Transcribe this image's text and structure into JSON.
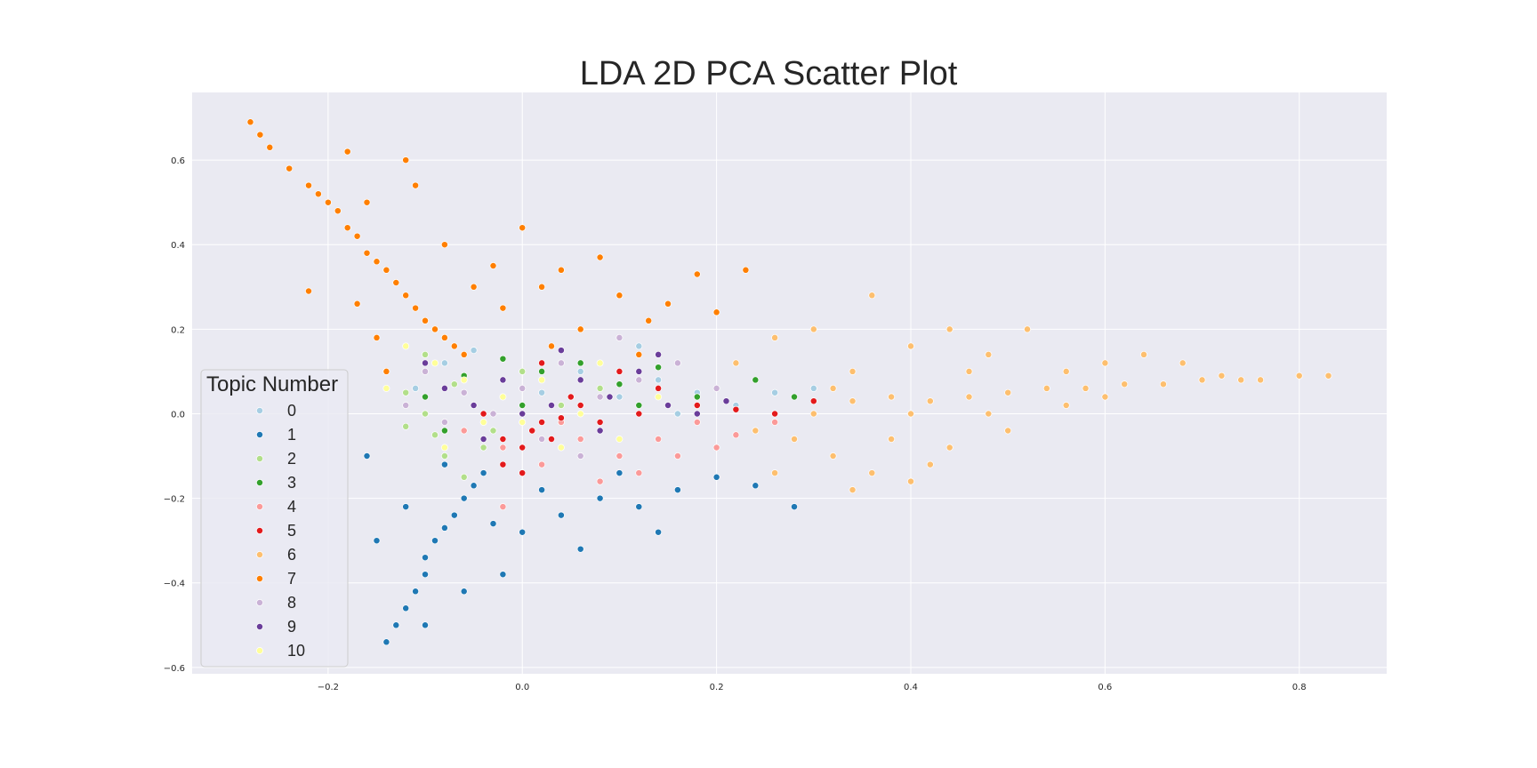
{
  "chart_data": {
    "type": "scatter",
    "title": "LDA 2D PCA Scatter Plot",
    "xlabel": "",
    "ylabel": "",
    "xlim": [
      -0.34,
      0.89
    ],
    "ylim": [
      -0.615,
      0.76
    ],
    "xticks": [
      -0.2,
      0.0,
      0.2,
      0.4,
      0.6,
      0.8
    ],
    "yticks": [
      -0.6,
      -0.4,
      -0.2,
      0.0,
      0.2,
      0.4,
      0.6
    ],
    "xtick_labels": [
      "−0.2",
      "0.0",
      "0.2",
      "0.4",
      "0.6",
      "0.8"
    ],
    "ytick_labels": [
      "−0.6",
      "−0.4",
      "−0.2",
      "0.0",
      "0.2",
      "0.4",
      "0.6"
    ],
    "grid": true,
    "legend": {
      "title": "Topic Number",
      "placement": "center-left"
    },
    "series": [
      {
        "name": "0",
        "color": "#a6cee3",
        "points": [
          [
            -0.08,
            0.12
          ],
          [
            -0.05,
            0.15
          ],
          [
            -0.02,
            0.08
          ],
          [
            0.02,
            0.05
          ],
          [
            0.06,
            0.1
          ],
          [
            0.1,
            0.04
          ],
          [
            0.14,
            0.08
          ],
          [
            0.18,
            0.05
          ],
          [
            0.22,
            0.02
          ],
          [
            0.26,
            0.05
          ],
          [
            0.3,
            0.06
          ],
          [
            0.12,
            0.16
          ],
          [
            -0.11,
            0.06
          ],
          [
            0.04,
            -0.02
          ],
          [
            0.16,
            0.0
          ]
        ]
      },
      {
        "name": "1",
        "color": "#1f78b4",
        "points": [
          [
            -0.14,
            -0.54
          ],
          [
            -0.13,
            -0.5
          ],
          [
            -0.12,
            -0.46
          ],
          [
            -0.11,
            -0.42
          ],
          [
            -0.1,
            -0.38
          ],
          [
            -0.1,
            -0.34
          ],
          [
            -0.09,
            -0.3
          ],
          [
            -0.08,
            -0.27
          ],
          [
            -0.07,
            -0.24
          ],
          [
            -0.06,
            -0.2
          ],
          [
            -0.05,
            -0.17
          ],
          [
            -0.04,
            -0.14
          ],
          [
            -0.16,
            -0.1
          ],
          [
            -0.12,
            -0.22
          ],
          [
            -0.15,
            -0.3
          ],
          [
            -0.03,
            -0.26
          ],
          [
            0.0,
            -0.28
          ],
          [
            0.04,
            -0.24
          ],
          [
            0.08,
            -0.2
          ],
          [
            0.12,
            -0.22
          ],
          [
            0.16,
            -0.18
          ],
          [
            0.2,
            -0.15
          ],
          [
            0.24,
            -0.17
          ],
          [
            0.28,
            -0.22
          ],
          [
            0.14,
            -0.28
          ],
          [
            0.06,
            -0.32
          ],
          [
            -0.02,
            -0.38
          ],
          [
            -0.06,
            -0.42
          ],
          [
            -0.1,
            -0.5
          ],
          [
            -0.08,
            -0.12
          ],
          [
            0.02,
            -0.18
          ],
          [
            0.1,
            -0.14
          ]
        ]
      },
      {
        "name": "2",
        "color": "#b2df8a",
        "points": [
          [
            -0.14,
            0.1
          ],
          [
            -0.12,
            0.05
          ],
          [
            -0.1,
            0.0
          ],
          [
            -0.09,
            -0.05
          ],
          [
            -0.08,
            -0.1
          ],
          [
            -0.07,
            0.07
          ],
          [
            -0.05,
            0.02
          ],
          [
            -0.03,
            -0.04
          ],
          [
            -0.12,
            -0.03
          ],
          [
            -0.06,
            -0.15
          ],
          [
            -0.1,
            0.14
          ],
          [
            0.0,
            0.1
          ],
          [
            0.04,
            0.02
          ],
          [
            0.08,
            0.06
          ],
          [
            -0.04,
            -0.08
          ]
        ]
      },
      {
        "name": "3",
        "color": "#33a02c",
        "points": [
          [
            -0.1,
            0.04
          ],
          [
            -0.06,
            0.09
          ],
          [
            -0.02,
            0.13
          ],
          [
            0.02,
            0.1
          ],
          [
            0.06,
            0.12
          ],
          [
            0.1,
            0.07
          ],
          [
            0.14,
            0.11
          ],
          [
            0.18,
            0.04
          ],
          [
            0.24,
            0.08
          ],
          [
            0.28,
            0.04
          ],
          [
            -0.08,
            -0.04
          ],
          [
            0.0,
            0.02
          ],
          [
            0.12,
            0.02
          ]
        ]
      },
      {
        "name": "4",
        "color": "#fb9a99",
        "points": [
          [
            -0.06,
            -0.04
          ],
          [
            -0.02,
            -0.08
          ],
          [
            0.02,
            -0.12
          ],
          [
            0.06,
            -0.06
          ],
          [
            0.1,
            -0.1
          ],
          [
            0.14,
            -0.06
          ],
          [
            0.18,
            -0.02
          ],
          [
            0.22,
            -0.05
          ],
          [
            0.26,
            -0.02
          ],
          [
            0.08,
            -0.16
          ],
          [
            0.12,
            -0.14
          ],
          [
            -0.02,
            -0.22
          ],
          [
            0.04,
            -0.02
          ],
          [
            0.16,
            -0.1
          ],
          [
            0.2,
            -0.08
          ]
        ]
      },
      {
        "name": "5",
        "color": "#e31a1c",
        "points": [
          [
            -0.02,
            -0.12
          ],
          [
            0.0,
            -0.08
          ],
          [
            0.01,
            -0.04
          ],
          [
            0.02,
            -0.02
          ],
          [
            0.03,
            -0.06
          ],
          [
            0.04,
            -0.01
          ],
          [
            0.0,
            -0.14
          ],
          [
            -0.02,
            -0.06
          ],
          [
            0.06,
            0.02
          ],
          [
            0.1,
            0.1
          ],
          [
            0.14,
            0.06
          ],
          [
            0.18,
            0.02
          ],
          [
            0.22,
            0.01
          ],
          [
            0.26,
            0.0
          ],
          [
            0.3,
            0.03
          ],
          [
            0.02,
            0.12
          ],
          [
            -0.04,
            0.0
          ],
          [
            0.05,
            0.04
          ],
          [
            0.08,
            -0.02
          ],
          [
            0.12,
            0.0
          ]
        ]
      },
      {
        "name": "6",
        "color": "#fdbf6f",
        "points": [
          [
            0.22,
            0.12
          ],
          [
            0.26,
            0.18
          ],
          [
            0.3,
            0.2
          ],
          [
            0.34,
            0.1
          ],
          [
            0.36,
            0.28
          ],
          [
            0.4,
            0.16
          ],
          [
            0.44,
            0.2
          ],
          [
            0.48,
            0.14
          ],
          [
            0.52,
            0.2
          ],
          [
            0.56,
            0.1
          ],
          [
            0.6,
            0.12
          ],
          [
            0.64,
            0.14
          ],
          [
            0.68,
            0.12
          ],
          [
            0.72,
            0.09
          ],
          [
            0.76,
            0.08
          ],
          [
            0.8,
            0.09
          ],
          [
            0.83,
            0.09
          ],
          [
            0.3,
            0.0
          ],
          [
            0.34,
            0.03
          ],
          [
            0.38,
            0.04
          ],
          [
            0.42,
            0.03
          ],
          [
            0.46,
            0.04
          ],
          [
            0.5,
            0.05
          ],
          [
            0.54,
            0.06
          ],
          [
            0.58,
            0.06
          ],
          [
            0.62,
            0.07
          ],
          [
            0.66,
            0.07
          ],
          [
            0.7,
            0.08
          ],
          [
            0.74,
            0.08
          ],
          [
            0.28,
            -0.06
          ],
          [
            0.32,
            -0.1
          ],
          [
            0.36,
            -0.14
          ],
          [
            0.4,
            -0.16
          ],
          [
            0.34,
            -0.18
          ],
          [
            0.26,
            -0.14
          ],
          [
            0.44,
            -0.08
          ],
          [
            0.5,
            -0.04
          ],
          [
            0.24,
            -0.04
          ],
          [
            0.48,
            0.0
          ],
          [
            0.56,
            0.02
          ],
          [
            0.4,
            0.0
          ],
          [
            0.32,
            0.06
          ],
          [
            0.6,
            0.04
          ],
          [
            0.42,
            -0.12
          ],
          [
            0.46,
            0.1
          ],
          [
            0.38,
            -0.06
          ]
        ]
      },
      {
        "name": "7",
        "color": "#ff7f00",
        "points": [
          [
            -0.28,
            0.69
          ],
          [
            -0.27,
            0.66
          ],
          [
            -0.26,
            0.63
          ],
          [
            -0.24,
            0.58
          ],
          [
            -0.22,
            0.54
          ],
          [
            -0.21,
            0.52
          ],
          [
            -0.2,
            0.5
          ],
          [
            -0.19,
            0.48
          ],
          [
            -0.18,
            0.44
          ],
          [
            -0.17,
            0.42
          ],
          [
            -0.16,
            0.38
          ],
          [
            -0.15,
            0.36
          ],
          [
            -0.14,
            0.34
          ],
          [
            -0.13,
            0.31
          ],
          [
            -0.12,
            0.28
          ],
          [
            -0.11,
            0.25
          ],
          [
            -0.1,
            0.22
          ],
          [
            -0.09,
            0.2
          ],
          [
            -0.08,
            0.18
          ],
          [
            -0.07,
            0.16
          ],
          [
            -0.06,
            0.14
          ],
          [
            -0.18,
            0.62
          ],
          [
            -0.12,
            0.6
          ],
          [
            -0.11,
            0.54
          ],
          [
            -0.16,
            0.5
          ],
          [
            -0.22,
            0.29
          ],
          [
            -0.17,
            0.26
          ],
          [
            -0.15,
            0.18
          ],
          [
            -0.14,
            0.1
          ],
          [
            -0.08,
            0.4
          ],
          [
            -0.03,
            0.35
          ],
          [
            0.0,
            0.44
          ],
          [
            0.02,
            0.3
          ],
          [
            0.04,
            0.34
          ],
          [
            0.08,
            0.37
          ],
          [
            0.1,
            0.28
          ],
          [
            0.13,
            0.22
          ],
          [
            0.15,
            0.26
          ],
          [
            0.18,
            0.33
          ],
          [
            0.2,
            0.24
          ],
          [
            0.23,
            0.34
          ],
          [
            -0.05,
            0.3
          ],
          [
            0.06,
            0.2
          ],
          [
            0.12,
            0.14
          ],
          [
            -0.02,
            0.25
          ],
          [
            0.03,
            0.16
          ]
        ]
      },
      {
        "name": "8",
        "color": "#cab2d6",
        "points": [
          [
            -0.1,
            0.1
          ],
          [
            -0.06,
            0.05
          ],
          [
            -0.03,
            0.0
          ],
          [
            0.0,
            0.06
          ],
          [
            0.04,
            0.12
          ],
          [
            0.08,
            0.04
          ],
          [
            0.12,
            0.08
          ],
          [
            0.16,
            0.12
          ],
          [
            0.2,
            0.06
          ],
          [
            -0.08,
            -0.02
          ],
          [
            0.02,
            -0.06
          ],
          [
            0.06,
            -0.1
          ],
          [
            -0.12,
            0.02
          ],
          [
            0.1,
            0.18
          ]
        ]
      },
      {
        "name": "9",
        "color": "#6a3d9a",
        "points": [
          [
            -0.08,
            0.06
          ],
          [
            -0.05,
            0.02
          ],
          [
            -0.02,
            0.08
          ],
          [
            0.0,
            0.0
          ],
          [
            0.03,
            0.02
          ],
          [
            0.06,
            0.08
          ],
          [
            0.09,
            0.04
          ],
          [
            0.12,
            0.1
          ],
          [
            0.15,
            0.02
          ],
          [
            0.18,
            0.0
          ],
          [
            0.21,
            0.03
          ],
          [
            -0.04,
            -0.06
          ],
          [
            0.04,
            0.15
          ],
          [
            0.08,
            -0.04
          ],
          [
            -0.1,
            0.12
          ],
          [
            0.14,
            0.14
          ]
        ]
      },
      {
        "name": "10",
        "color": "#ffff99",
        "points": [
          [
            -0.12,
            0.16
          ],
          [
            -0.09,
            0.12
          ],
          [
            -0.06,
            0.08
          ],
          [
            -0.04,
            -0.02
          ],
          [
            -0.02,
            0.04
          ],
          [
            0.02,
            0.08
          ],
          [
            0.06,
            0.0
          ],
          [
            0.1,
            -0.06
          ],
          [
            0.14,
            0.04
          ],
          [
            -0.08,
            -0.08
          ],
          [
            0.0,
            -0.02
          ],
          [
            -0.14,
            0.06
          ],
          [
            0.04,
            -0.08
          ],
          [
            0.08,
            0.12
          ]
        ]
      }
    ]
  }
}
